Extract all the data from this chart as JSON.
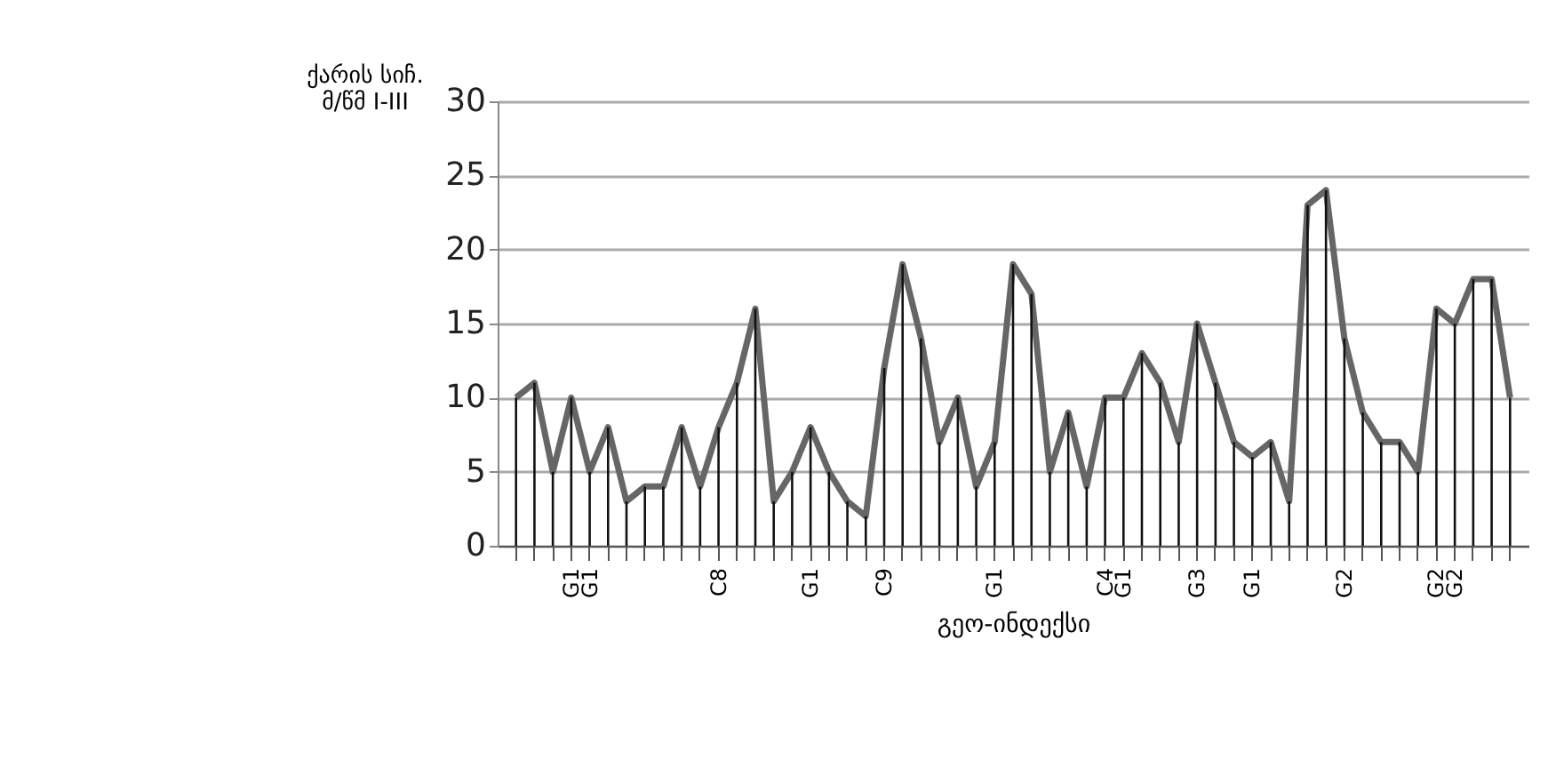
{
  "chart_data": {
    "type": "line",
    "xlabel": "გეო-ინდექსი",
    "ylabel": "ქარის  სიჩ.\nმ/წმ I-III",
    "categories": [
      null,
      null,
      null,
      "G1",
      "G1",
      null,
      null,
      null,
      null,
      null,
      null,
      "C8",
      null,
      null,
      null,
      null,
      "G1",
      null,
      null,
      null,
      "C9",
      null,
      null,
      null,
      null,
      null,
      "G1",
      null,
      null,
      null,
      null,
      null,
      "C4",
      "G1",
      null,
      null,
      null,
      "G3",
      null,
      null,
      "G1",
      null,
      null,
      null,
      null,
      "G2",
      null,
      null,
      null,
      null,
      "G2",
      "G2",
      null,
      null,
      null
    ],
    "series": [
      {
        "type": "bar",
        "color": "#111111",
        "values": [
          10,
          11,
          5,
          10,
          5,
          8,
          3,
          4,
          4,
          8,
          4,
          8,
          11,
          16,
          3,
          5,
          8,
          5,
          3,
          2,
          12,
          19,
          14,
          7,
          10,
          4,
          7,
          19,
          17,
          5,
          9,
          4,
          10,
          10,
          13,
          11,
          7,
          15,
          11,
          7,
          6,
          7,
          3,
          23,
          24,
          14,
          9,
          7,
          7,
          5,
          16,
          15,
          18,
          18,
          10
        ]
      },
      {
        "color": "#666666",
        "values": [
          10,
          11,
          5,
          10,
          5,
          8,
          3,
          4,
          4,
          8,
          4,
          8,
          11,
          16,
          3,
          5,
          8,
          5,
          3,
          2,
          12,
          19,
          14,
          7,
          10,
          4,
          7,
          19,
          17,
          5,
          9,
          4,
          10,
          10,
          13,
          11,
          7,
          15,
          11,
          7,
          6,
          7,
          3,
          23,
          24,
          14,
          9,
          7,
          7,
          5,
          16,
          15,
          18,
          18,
          10
        ]
      }
    ],
    "ylim": [
      0,
      30
    ],
    "yticks": [
      0,
      5,
      10,
      15,
      20,
      25,
      30
    ],
    "grid": "y",
    "legend": false,
    "marker": "none",
    "line_style": "solid"
  }
}
